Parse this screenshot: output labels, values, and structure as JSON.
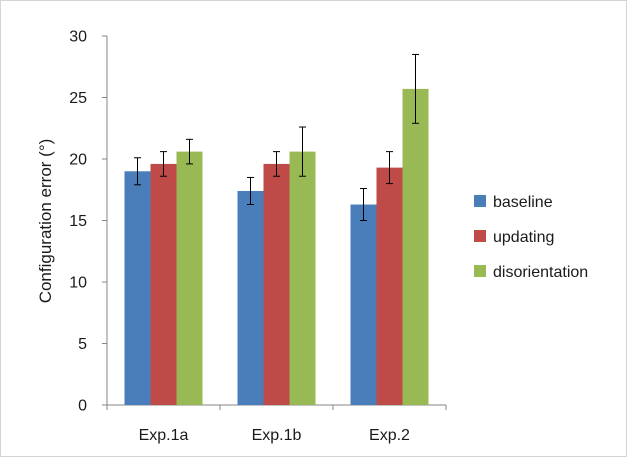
{
  "chart_data": {
    "type": "bar",
    "title": "",
    "xlabel": "",
    "ylabel": "Configuration error (°)",
    "categories": [
      "Exp.1a",
      "Exp.1b",
      "Exp.2"
    ],
    "series": [
      {
        "name": "baseline",
        "color": "#4a7ebb",
        "values": [
          19.0,
          17.4,
          16.3
        ],
        "error": [
          1.1,
          1.1,
          1.3
        ]
      },
      {
        "name": "updating",
        "color": "#be4b48",
        "values": [
          19.6,
          19.6,
          19.3
        ],
        "error": [
          1.0,
          1.0,
          1.3
        ]
      },
      {
        "name": "disorientation",
        "color": "#98b954",
        "values": [
          20.6,
          20.6,
          25.7
        ],
        "error": [
          1.0,
          2.0,
          2.8
        ]
      }
    ],
    "ylim": [
      0,
      30
    ],
    "yticks": [
      0,
      5,
      10,
      15,
      20,
      25,
      30
    ],
    "grid": false,
    "legend_position": "right"
  }
}
